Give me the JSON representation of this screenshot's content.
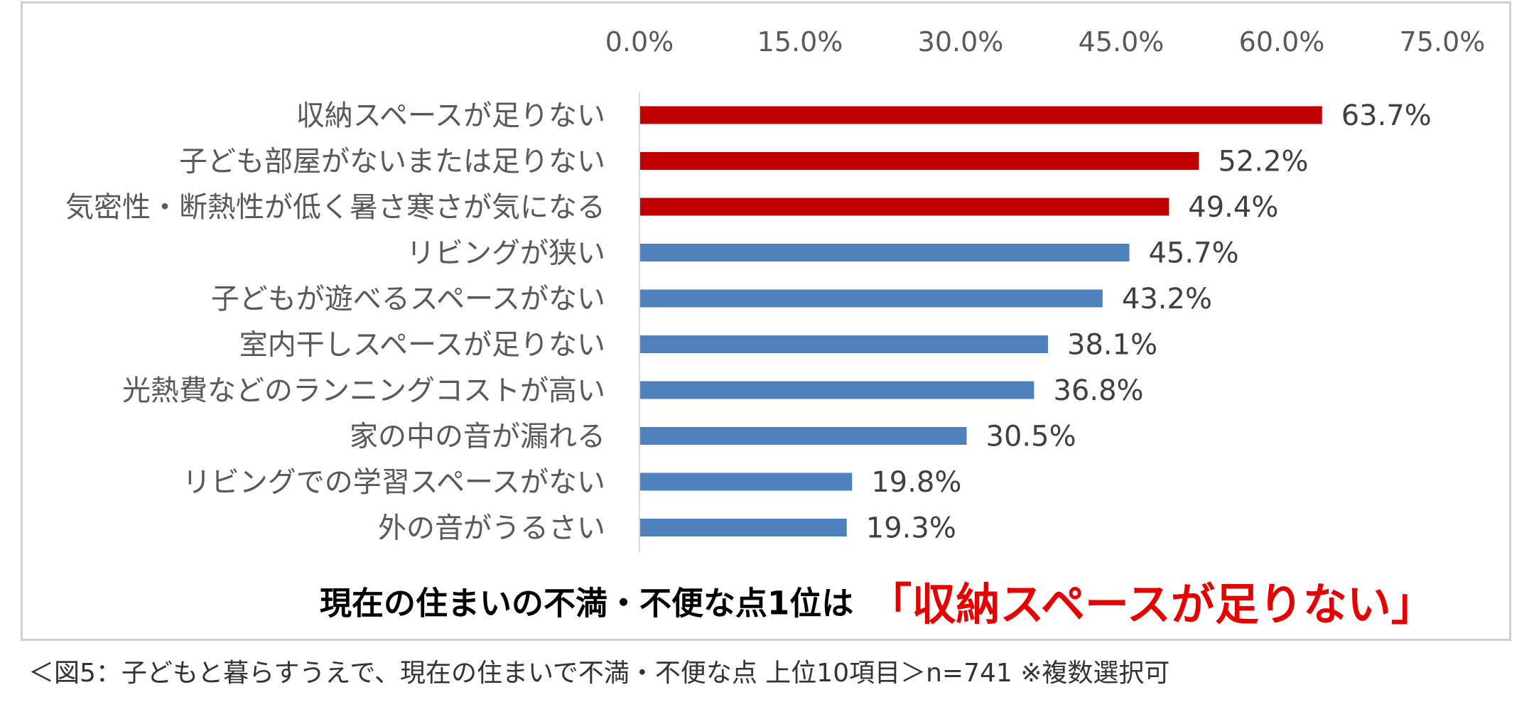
{
  "chart_data": {
    "type": "bar",
    "orientation": "horizontal",
    "xlim": [
      0,
      75
    ],
    "x_ticks": [
      "0.0%",
      "15.0%",
      "30.0%",
      "45.0%",
      "60.0%",
      "75.0%"
    ],
    "x_tick_values": [
      0,
      15,
      30,
      45,
      60,
      75
    ],
    "categories": [
      "収納スペースが足りない",
      "子ども部屋がないまたは足りない",
      "気密性・断熱性が低く暑さ寒さが気になる",
      "リビングが狭い",
      "子どもが遊べるスペースがない",
      "室内干しスペースが足りない",
      "光熱費などのランニングコストが高い",
      "家の中の音が漏れる",
      "リビングでの学習スペースがない",
      "外の音がうるさい"
    ],
    "values": [
      63.7,
      52.2,
      49.4,
      45.7,
      43.2,
      38.1,
      36.8,
      30.5,
      19.8,
      19.3
    ],
    "data_labels": [
      "63.7%",
      "52.2%",
      "49.4%",
      "45.7%",
      "43.2%",
      "38.1%",
      "36.8%",
      "30.5%",
      "19.8%",
      "19.3%"
    ],
    "highlight_count": 3,
    "colors": {
      "highlight": "#c00000",
      "default": "#4f81bd"
    },
    "grid": false,
    "legend": "none"
  },
  "headline": {
    "main": "現在の住まいの不満・不便な点1位は",
    "accent": "「収納スペースが足りない」"
  },
  "caption": "＜図5：子どもと暮らすうえで、現在の住まいで不満・不便な点 上位10項目＞n=741 ※複数選択可"
}
